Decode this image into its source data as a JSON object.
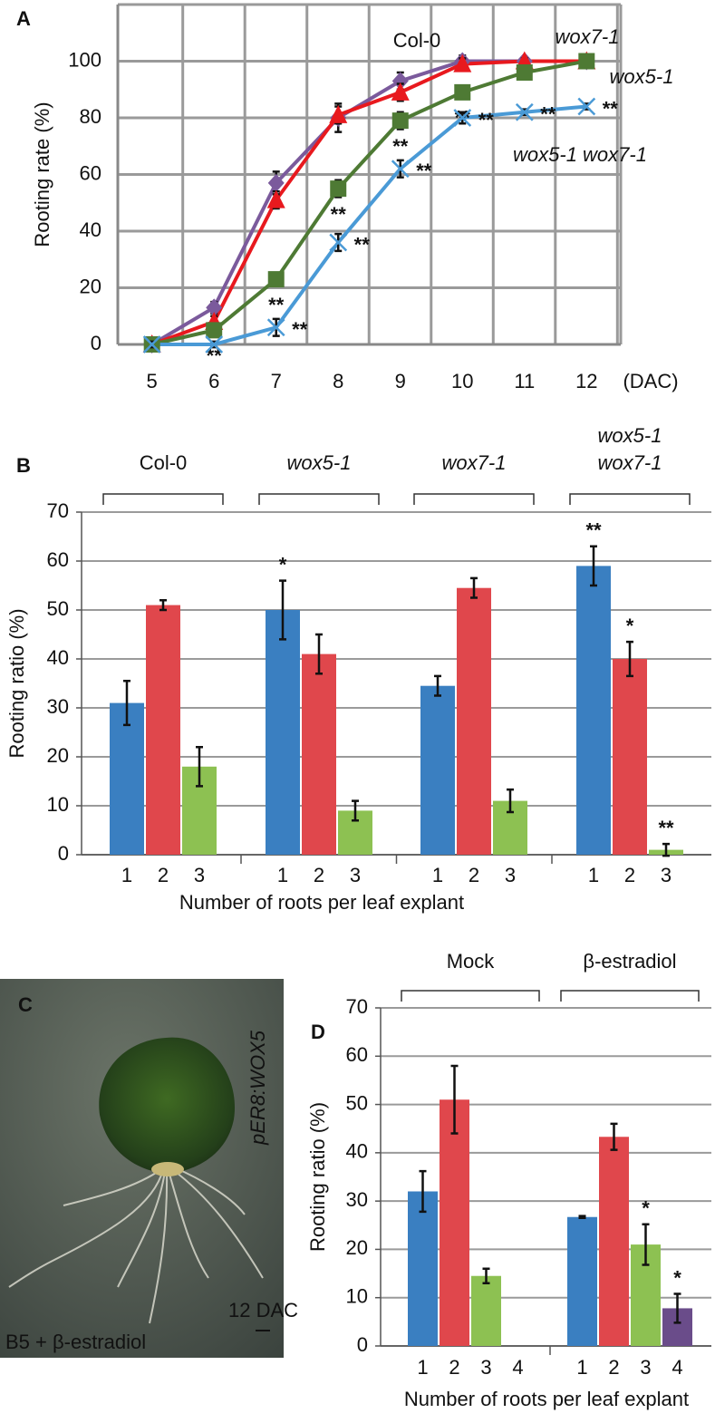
{
  "chart_data": [
    {
      "type": "line",
      "panel": "A",
      "ylabel": "Rooting rate (%)",
      "xlabel": "(DAC)",
      "x": [
        5,
        6,
        7,
        8,
        9,
        10,
        11,
        12
      ],
      "xlim": [
        4.45,
        12.55
      ],
      "xticks": [
        5,
        6,
        7,
        8,
        9,
        10,
        11,
        12
      ],
      "ylim": [
        0,
        120
      ],
      "yticks": [
        0,
        20,
        40,
        60,
        80,
        100
      ],
      "grid": true,
      "series": [
        {
          "name": "Col-0",
          "italic": false,
          "color": "#7b5a9c",
          "marker": "diamond",
          "values": [
            0,
            13,
            57,
            80,
            93,
            100,
            100,
            100
          ],
          "errors": [
            1,
            2,
            4,
            5,
            3,
            2,
            1,
            1
          ]
        },
        {
          "name": "wox7-1",
          "italic": true,
          "color": "#e8191e",
          "marker": "triangle",
          "values": [
            0,
            8,
            51,
            81,
            89,
            99,
            100,
            100
          ],
          "errors": [
            1,
            2,
            3,
            3,
            3,
            2,
            1,
            1
          ]
        },
        {
          "name": "wox5-1",
          "italic": true,
          "color": "#4e7a34",
          "marker": "square",
          "values": [
            0,
            5,
            23,
            55,
            79,
            89,
            96,
            100
          ],
          "errors": [
            1,
            1,
            2,
            3,
            3,
            2,
            2,
            1
          ],
          "significance": [
            null,
            "**",
            "**",
            "**",
            "**",
            "**",
            null,
            null
          ]
        },
        {
          "name": "wox5-1 wox7-1",
          "italic": true,
          "color": "#4a9ad6",
          "marker": "cross",
          "values": [
            0,
            0,
            6,
            36,
            62,
            80,
            82,
            84
          ],
          "errors": [
            1,
            1,
            3,
            3,
            3,
            2,
            1,
            1
          ],
          "significance": [
            null,
            null,
            "**",
            "**",
            "**",
            "**",
            "**",
            "**"
          ]
        }
      ]
    },
    {
      "type": "grouped-bar",
      "panel": "B",
      "ylabel": "Rooting ratio (%)",
      "xlabel": "Number of roots per leaf explant",
      "ylim": [
        0,
        70
      ],
      "yticks": [
        0,
        10,
        20,
        30,
        40,
        50,
        60,
        70
      ],
      "grid": true,
      "colors": [
        "#3a7fc1",
        "#e0474c",
        "#8dc152"
      ],
      "groups": [
        {
          "name": [
            "Col-0"
          ],
          "italic": false,
          "categories": [
            "1",
            "2",
            "3"
          ],
          "values": [
            31,
            51,
            18
          ],
          "errors": [
            4.5,
            1,
            4
          ]
        },
        {
          "name": [
            "wox5-1"
          ],
          "italic": true,
          "categories": [
            "1",
            "2",
            "3"
          ],
          "values": [
            50,
            41,
            9
          ],
          "errors": [
            6,
            4,
            2
          ],
          "significance": [
            "*",
            null,
            null
          ]
        },
        {
          "name": [
            "wox7-1"
          ],
          "italic": true,
          "categories": [
            "1",
            "2",
            "3"
          ],
          "values": [
            34.5,
            54.5,
            11
          ],
          "errors": [
            2,
            2,
            2.3
          ]
        },
        {
          "name": [
            "wox5-1",
            "wox7-1"
          ],
          "italic": true,
          "categories": [
            "1",
            "2",
            "3"
          ],
          "values": [
            59,
            40,
            1
          ],
          "errors": [
            4,
            3.5,
            1.2
          ],
          "significance": [
            "**",
            "*",
            "**"
          ]
        }
      ]
    },
    {
      "type": "image",
      "panel": "C",
      "labels": [
        "pER8:WOX5",
        "12 DAC",
        "B5 + β-estradiol"
      ]
    },
    {
      "type": "grouped-bar",
      "panel": "D",
      "ylabel": "Rooting ratio (%)",
      "xlabel": "Number of roots per leaf explant",
      "ylim": [
        0,
        70
      ],
      "yticks": [
        0,
        10,
        20,
        30,
        40,
        50,
        60,
        70
      ],
      "grid": true,
      "colors": [
        "#3a7fc1",
        "#e0474c",
        "#8dc152",
        "#6a4c8a"
      ],
      "groups": [
        {
          "name": [
            "Mock"
          ],
          "italic": false,
          "categories": [
            "1",
            "2",
            "3",
            "4"
          ],
          "values": [
            32,
            51,
            14.5,
            0
          ],
          "errors": [
            4.2,
            7,
            1.5,
            0
          ]
        },
        {
          "name": [
            "β-estradiol"
          ],
          "italic": false,
          "categories": [
            "1",
            "2",
            "3",
            "4"
          ],
          "values": [
            26.7,
            43.3,
            21,
            7.8
          ],
          "errors": [
            0.2,
            2.7,
            4.2,
            3
          ],
          "significance": [
            null,
            null,
            "*",
            "*"
          ]
        }
      ]
    }
  ]
}
